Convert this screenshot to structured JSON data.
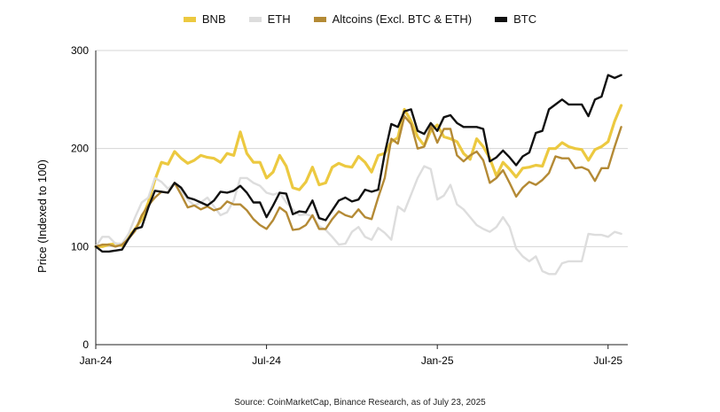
{
  "chart_data": {
    "type": "line",
    "title": "",
    "xlabel": "",
    "ylabel": "Price (Indexed to 100)",
    "ylim": [
      0,
      300
    ],
    "yticks": [
      0,
      100,
      200,
      300
    ],
    "xticks": [
      {
        "label": "Jan-24",
        "week": 0
      },
      {
        "label": "Jul-24",
        "week": 26
      },
      {
        "label": "Jan-25",
        "week": 52
      },
      {
        "label": "Jul-25",
        "week": 78
      }
    ],
    "x_range": [
      0,
      81
    ],
    "grid": "horizontal",
    "legend_position": "top-center",
    "series": [
      {
        "name": "BNB",
        "color": "#ecc940",
        "width": 3.2,
        "values": [
          100,
          100,
          102,
          103,
          101,
          110,
          118,
          128,
          145,
          168,
          186,
          184,
          197,
          190,
          185,
          188,
          193,
          191,
          190,
          186,
          195,
          193,
          217,
          195,
          186,
          186,
          170,
          176,
          193,
          182,
          160,
          158,
          166,
          181,
          163,
          165,
          181,
          185,
          182,
          181,
          192,
          186,
          176,
          193,
          195,
          207,
          211,
          240,
          228,
          212,
          203,
          218,
          224,
          212,
          210,
          207,
          195,
          189,
          210,
          202,
          190,
          172,
          186,
          179,
          171,
          180,
          181,
          183,
          182,
          200,
          200,
          206,
          202,
          200,
          199,
          188,
          199,
          202,
          207,
          228,
          244
        ]
      },
      {
        "name": "ETH",
        "color": "#dddddd",
        "width": 2.4,
        "values": [
          100,
          110,
          110,
          103,
          103,
          113,
          130,
          145,
          150,
          170,
          166,
          159,
          165,
          157,
          148,
          142,
          145,
          150,
          141,
          132,
          135,
          147,
          170,
          170,
          165,
          162,
          155,
          153,
          155,
          145,
          138,
          132,
          133,
          131,
          121,
          117,
          110,
          102,
          103,
          115,
          120,
          110,
          107,
          119,
          114,
          107,
          141,
          136,
          153,
          170,
          182,
          179,
          148,
          152,
          163,
          143,
          138,
          130,
          122,
          118,
          115,
          120,
          130,
          120,
          98,
          90,
          85,
          90,
          75,
          72,
          72,
          83,
          85,
          85,
          85,
          113,
          112,
          112,
          110,
          115,
          113
        ]
      },
      {
        "name": "Altcoins (Excl. BTC & ETH)",
        "color": "#b48a35",
        "width": 2.4,
        "values": [
          100,
          102,
          102,
          100,
          102,
          108,
          116,
          132,
          142,
          150,
          156,
          155,
          165,
          153,
          140,
          142,
          138,
          141,
          137,
          139,
          146,
          143,
          143,
          137,
          128,
          122,
          118,
          127,
          140,
          135,
          117,
          118,
          122,
          132,
          118,
          118,
          128,
          136,
          132,
          130,
          138,
          130,
          128,
          150,
          170,
          210,
          205,
          233,
          225,
          200,
          202,
          223,
          206,
          220,
          220,
          193,
          187,
          193,
          197,
          188,
          165,
          170,
          178,
          165,
          151,
          160,
          166,
          163,
          168,
          175,
          192,
          190,
          190,
          180,
          181,
          178,
          167,
          180,
          180,
          202,
          222
        ]
      },
      {
        "name": "BTC",
        "color": "#111111",
        "width": 2.4,
        "values": [
          100,
          95,
          95,
          96,
          97,
          108,
          118,
          120,
          140,
          157,
          156,
          155,
          165,
          160,
          150,
          148,
          145,
          142,
          147,
          156,
          155,
          157,
          162,
          155,
          145,
          145,
          130,
          142,
          155,
          154,
          133,
          136,
          135,
          147,
          129,
          127,
          137,
          147,
          150,
          146,
          148,
          158,
          156,
          158,
          195,
          225,
          222,
          238,
          240,
          218,
          215,
          226,
          218,
          232,
          234,
          226,
          222,
          222,
          222,
          220,
          187,
          191,
          198,
          191,
          183,
          192,
          196,
          216,
          218,
          240,
          245,
          250,
          245,
          245,
          245,
          233,
          250,
          253,
          275,
          272,
          275
        ]
      }
    ]
  },
  "source_text": "Source: CoinMarketCap, Binance Research, as of July 23, 2025"
}
